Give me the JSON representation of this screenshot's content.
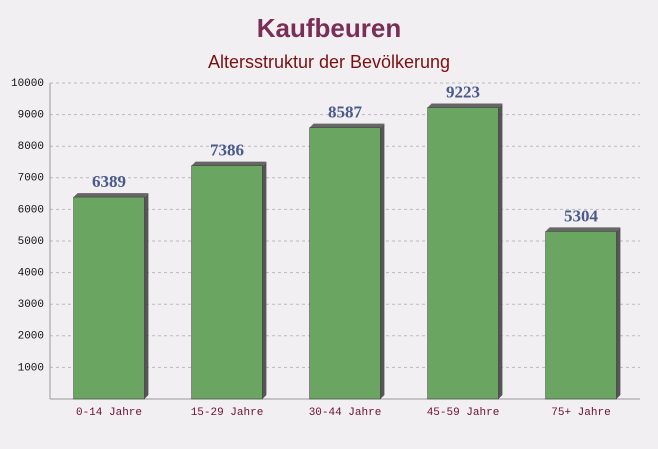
{
  "chart_data": {
    "type": "bar",
    "title": "Kaufbeuren",
    "subtitle": "Altersstruktur der Bevölkerung",
    "categories": [
      "0-14 Jahre",
      "15-29 Jahre",
      "30-44 Jahre",
      "45-59 Jahre",
      "75+ Jahre"
    ],
    "values": [
      6389,
      7386,
      8587,
      9223,
      5304
    ],
    "color": "#6aa562",
    "ylim": [
      0,
      10000
    ],
    "yticks": [
      1000,
      2000,
      3000,
      4000,
      5000,
      6000,
      7000,
      8000,
      9000,
      10000
    ],
    "grid": true
  }
}
